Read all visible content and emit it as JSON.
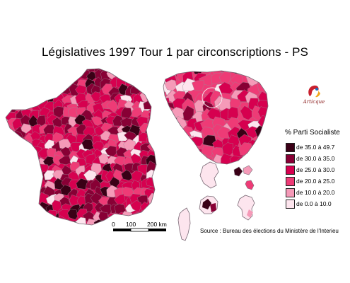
{
  "title": "Législatives 1997 Tour 1 par circonscriptions - PS",
  "logo": {
    "name": "Articque",
    "icon": "articque-logo"
  },
  "legend": {
    "title": "% Parti Socialiste",
    "classes": [
      {
        "label": "de 35.0 à 49.7",
        "color": "#3a0016"
      },
      {
        "label": "de 30.0 à 35.0",
        "color": "#880035"
      },
      {
        "label": "de 25.0 à 30.0",
        "color": "#d6004f"
      },
      {
        "label": "de 20.0 à 25.0",
        "color": "#ee3b76"
      },
      {
        "label": "de 10.0 à 20.0",
        "color": "#f59ab8"
      },
      {
        "label": "de 0.0 à 10.0",
        "color": "#fde5ee"
      }
    ]
  },
  "scale": {
    "labels": [
      "0",
      "100",
      "200 km"
    ]
  },
  "source": "Source : Bureau des élections du Ministère de l'Interieu",
  "colors": {
    "background": "#ffffff",
    "border": "#9a8a96"
  }
}
